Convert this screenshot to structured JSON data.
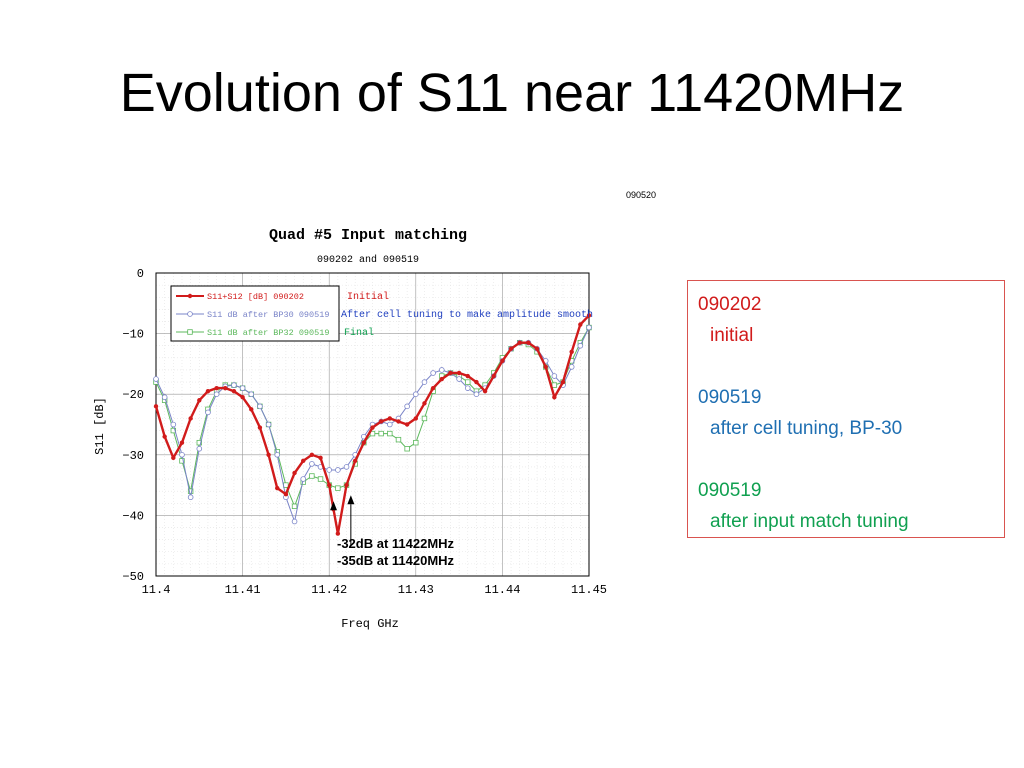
{
  "slide": {
    "title": "Evolution of S11 near 11420MHz"
  },
  "chart_data": {
    "type": "line",
    "date_stamp": "090520",
    "title": "Quad #5  Input matching",
    "subtitle": "090202 and 090519",
    "xlabel": "Freq GHz",
    "ylabel": "S11  [dB]",
    "xlim": [
      11.4,
      11.45
    ],
    "ylim": [
      -50,
      0
    ],
    "xticks": [
      "11.4",
      "11.41",
      "11.42",
      "11.43",
      "11.44",
      "11.45"
    ],
    "yticks": [
      "0",
      "−10",
      "−20",
      "−30",
      "−40",
      "−50"
    ],
    "xtick_values": [
      11.4,
      11.41,
      11.42,
      11.43,
      11.44,
      11.45
    ],
    "ytick_values": [
      0,
      -10,
      -20,
      -30,
      -40,
      -50
    ],
    "grid": true,
    "legend_position": "top-left",
    "series": [
      {
        "name": "S11+S12  [dB]  090202",
        "tag": "Initial",
        "color": "#d11b1b",
        "marker": "filled-circle",
        "x": [
          11.4,
          11.401,
          11.402,
          11.403,
          11.404,
          11.405,
          11.406,
          11.407,
          11.408,
          11.409,
          11.41,
          11.411,
          11.412,
          11.413,
          11.414,
          11.415,
          11.416,
          11.417,
          11.418,
          11.419,
          11.42,
          11.4205,
          11.421,
          11.422,
          11.423,
          11.424,
          11.425,
          11.426,
          11.427,
          11.428,
          11.429,
          11.43,
          11.431,
          11.432,
          11.433,
          11.434,
          11.435,
          11.436,
          11.437,
          11.438,
          11.439,
          11.44,
          11.441,
          11.442,
          11.443,
          11.444,
          11.445,
          11.446,
          11.447,
          11.448,
          11.449,
          11.45
        ],
        "y": [
          -22,
          -27,
          -30.5,
          -28,
          -24,
          -21,
          -19.5,
          -19,
          -19,
          -19.5,
          -20.5,
          -22.5,
          -25.5,
          -30,
          -35.5,
          -36.5,
          -33,
          -31,
          -30,
          -30.5,
          -35,
          -39,
          -43,
          -35,
          -31,
          -28,
          -25.5,
          -24.5,
          -24,
          -24.5,
          -25,
          -24,
          -21.5,
          -19,
          -17.5,
          -16.5,
          -16.5,
          -17,
          -18,
          -19.5,
          -17,
          -14.5,
          -12.5,
          -11.5,
          -11.5,
          -12.5,
          -15.5,
          -20.5,
          -18,
          -13,
          -8.5,
          -7
        ]
      },
      {
        "name": "S11  dB   after BP30   090519",
        "tag": "After cell tuning to make amplitude smooth",
        "color": "#7a84c8",
        "marker": "open-circle",
        "x": [
          11.4,
          11.401,
          11.402,
          11.403,
          11.404,
          11.405,
          11.406,
          11.407,
          11.408,
          11.409,
          11.41,
          11.411,
          11.412,
          11.413,
          11.414,
          11.415,
          11.416,
          11.417,
          11.418,
          11.419,
          11.42,
          11.421,
          11.422,
          11.423,
          11.424,
          11.425,
          11.426,
          11.427,
          11.428,
          11.429,
          11.43,
          11.431,
          11.432,
          11.433,
          11.434,
          11.435,
          11.436,
          11.437,
          11.438,
          11.439,
          11.44,
          11.441,
          11.442,
          11.443,
          11.444,
          11.445,
          11.446,
          11.447,
          11.448,
          11.449,
          11.45
        ],
        "y": [
          -17.5,
          -20.5,
          -25,
          -30,
          -37,
          -29,
          -23,
          -20,
          -18.7,
          -18.5,
          -19,
          -20,
          -22,
          -25,
          -30,
          -37,
          -41,
          -34,
          -31.5,
          -32,
          -32.5,
          -32.5,
          -32,
          -30,
          -27,
          -25,
          -24.5,
          -25,
          -24,
          -22,
          -20,
          -18,
          -16.5,
          -16,
          -16.5,
          -17.5,
          -19,
          -20,
          -19,
          -17,
          -14.5,
          -12.5,
          -11.5,
          -11.5,
          -12.5,
          -14.5,
          -17,
          -18.5,
          -15.5,
          -12,
          -9
        ]
      },
      {
        "name": "S11  dB  after BP32  090519",
        "tag": "Final",
        "color": "#5cb85c",
        "marker": "open-square",
        "x": [
          11.4,
          11.401,
          11.402,
          11.403,
          11.404,
          11.405,
          11.406,
          11.407,
          11.408,
          11.409,
          11.41,
          11.411,
          11.412,
          11.413,
          11.414,
          11.415,
          11.416,
          11.417,
          11.418,
          11.419,
          11.42,
          11.421,
          11.422,
          11.423,
          11.424,
          11.425,
          11.426,
          11.427,
          11.428,
          11.429,
          11.43,
          11.431,
          11.432,
          11.433,
          11.434,
          11.435,
          11.436,
          11.437,
          11.438,
          11.439,
          11.44,
          11.441,
          11.442,
          11.443,
          11.444,
          11.445,
          11.446,
          11.447,
          11.448,
          11.449,
          11.45
        ],
        "y": [
          -18,
          -21,
          -26,
          -31,
          -36,
          -28,
          -22.5,
          -19.5,
          -18.5,
          -18.5,
          -19,
          -20,
          -22,
          -25,
          -29.5,
          -35,
          -38.5,
          -34.5,
          -33.5,
          -34,
          -35,
          -35.5,
          -35,
          -31.5,
          -28,
          -26.5,
          -26.5,
          -26.5,
          -27.5,
          -29,
          -28,
          -24,
          -19.5,
          -17,
          -16.5,
          -17,
          -18,
          -19.5,
          -18.5,
          -16.5,
          -14,
          -12.5,
          -11.5,
          -11.8,
          -13,
          -15.5,
          -18.5,
          -18,
          -14.5,
          -11.5,
          -9
        ]
      }
    ],
    "annotations": [
      "-32dB at 11422MHz",
      "-35dB at 11420MHz"
    ],
    "marker_x": [
      11.4205,
      11.4225
    ],
    "marker_y": [
      -38.5,
      -37.5
    ]
  },
  "notes": {
    "entries": [
      {
        "date": "090202",
        "text": "initial",
        "color": "#d11b1b"
      },
      {
        "date": "090519",
        "text": "after cell tuning, BP-30",
        "color": "#1f6fb2"
      },
      {
        "date": "090519",
        "text": "after input match tuning",
        "color": "#10a050"
      }
    ],
    "border_color": "#d9534f"
  }
}
